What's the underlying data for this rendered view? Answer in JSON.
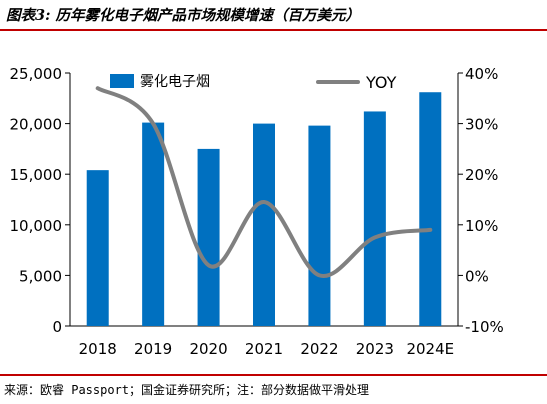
{
  "figure_title": "图表3: 历年雾化电子烟产品市场规模增速（百万美元）",
  "source_note": "来源：欧睿 Passport；国金证券研究所；注：部分数据做平滑处理",
  "colors": {
    "bar": "#0070c0",
    "line": "#808080",
    "rule": "#c00000"
  },
  "chart_data": {
    "type": "bar",
    "categories": [
      "2018",
      "2019",
      "2020",
      "2021",
      "2022",
      "2023",
      "2024E"
    ],
    "series": [
      {
        "name": "雾化电子烟",
        "type": "bar",
        "axis": "left",
        "values": [
          15400,
          20100,
          17500,
          20000,
          19800,
          21200,
          23100
        ]
      },
      {
        "name": "YOY",
        "type": "line",
        "axis": "right",
        "values": [
          37,
          30,
          2,
          14.5,
          0,
          7.5,
          9
        ]
      }
    ],
    "y_left": {
      "min": 0,
      "max": 25000,
      "ticks": [
        "0",
        "5,000",
        "10,000",
        "15,000",
        "20,000",
        "25,000"
      ]
    },
    "y_right": {
      "min": -10,
      "max": 40,
      "ticks": [
        "-10%",
        "0%",
        "10%",
        "20%",
        "30%",
        "40%"
      ]
    },
    "legend_position": "top"
  }
}
